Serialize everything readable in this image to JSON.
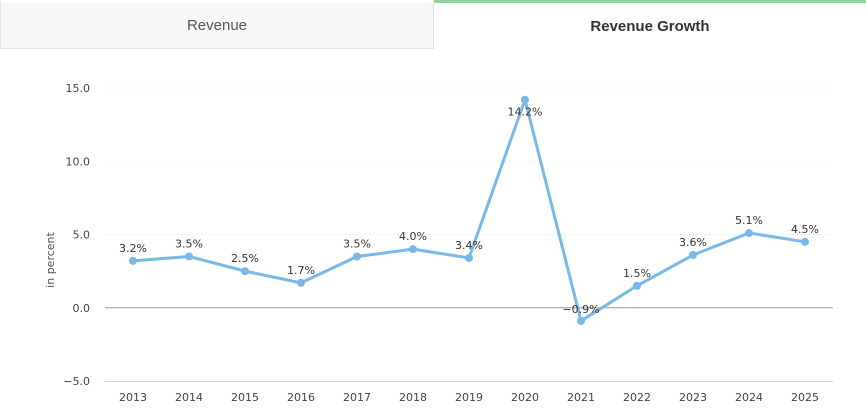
{
  "tabs": [
    {
      "label": "Revenue",
      "active": false
    },
    {
      "label": "Revenue Growth",
      "active": true
    }
  ],
  "colors": {
    "line": "#7ab8e6",
    "accent_tab": "#8fd59a",
    "grid": "#dcdcdc"
  },
  "chart_data": {
    "type": "line",
    "title": "",
    "xlabel": "",
    "ylabel": "in percent",
    "categories": [
      "2013",
      "2014",
      "2015",
      "2016",
      "2017",
      "2018",
      "2019",
      "2020",
      "2021",
      "2022",
      "2023",
      "2024",
      "2025"
    ],
    "series": [
      {
        "name": "Revenue Growth",
        "values": [
          3.2,
          3.5,
          2.5,
          1.7,
          3.5,
          4.0,
          3.4,
          14.2,
          -0.9,
          1.5,
          3.6,
          5.1,
          4.5
        ],
        "labels": [
          "3.2%",
          "3.5%",
          "2.5%",
          "1.7%",
          "3.5%",
          "4.0%",
          "3.4%",
          "14.2%",
          "−0.9%",
          "1.5%",
          "3.6%",
          "5.1%",
          "4.5%"
        ]
      }
    ],
    "ylim": [
      -5,
      15
    ],
    "yticks": [
      15,
      10,
      5,
      0,
      -5
    ],
    "ytick_labels": [
      "15.0",
      "10.0",
      "5.0",
      "0.0",
      "−5.0"
    ],
    "grid": true,
    "legend": "none"
  }
}
